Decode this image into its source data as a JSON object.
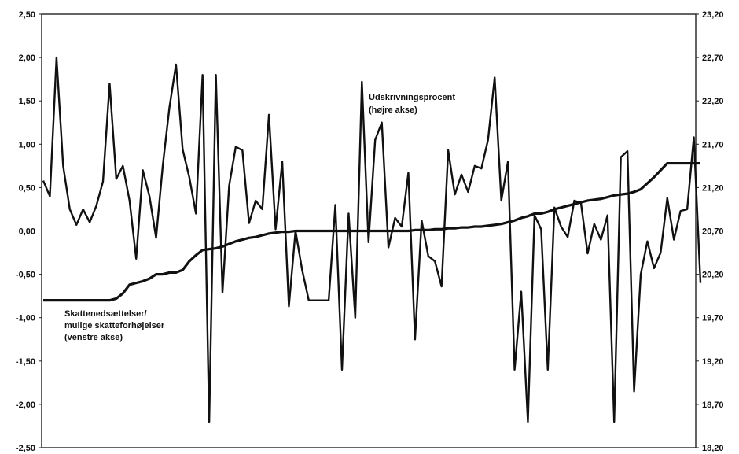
{
  "chart_data": {
    "type": "line",
    "title": "",
    "xlabel": "",
    "grid": false,
    "left_axis": {
      "ylim": [
        -2.5,
        2.5
      ],
      "ticks": [
        2.5,
        2.0,
        1.5,
        1.0,
        0.5,
        0.0,
        -0.5,
        -1.0,
        -1.5,
        -2.0,
        -2.5
      ],
      "tick_labels": [
        "2,50",
        "2,00",
        "1,50",
        "1,00",
        "0,50",
        "0,00",
        "-0,50",
        "-1,00",
        "-1,50",
        "-2,00",
        "-2,50"
      ]
    },
    "right_axis": {
      "ylim": [
        18.2,
        23.2
      ],
      "ticks": [
        23.2,
        22.7,
        22.2,
        21.7,
        21.2,
        20.7,
        20.2,
        19.7,
        19.2,
        18.7,
        18.2
      ],
      "tick_labels": [
        "23,20",
        "22,70",
        "22,20",
        "21,70",
        "21,20",
        "20,70",
        "20,20",
        "19,70",
        "19,20",
        "18,70",
        "18,20"
      ]
    },
    "annotations": [
      {
        "id": "right-series",
        "lines": [
          "Udskrivningsprocent",
          "(højre akse)"
        ]
      },
      {
        "id": "left-series",
        "lines": [
          "Skattenedsættelser/",
          "mulige skatteforhøjelser",
          "(venstre akse)"
        ]
      }
    ],
    "series": [
      {
        "axis": "right",
        "values": [
          21.28,
          21.1,
          22.7,
          21.45,
          20.95,
          20.77,
          20.95,
          20.8,
          20.99,
          21.27,
          22.4,
          21.3,
          21.45,
          21.05,
          20.38,
          21.4,
          21.1,
          20.62,
          21.45,
          22.12,
          22.62,
          21.64,
          21.32,
          20.9,
          22.5,
          18.5,
          22.5,
          19.99,
          21.22,
          21.67,
          21.63,
          20.79,
          21.05,
          20.95,
          22.04,
          20.72,
          21.5,
          19.83,
          20.7,
          20.25,
          19.9,
          19.9,
          19.9,
          19.9,
          21.0,
          19.1,
          20.9,
          19.7,
          22.42,
          20.57,
          21.75,
          21.95,
          20.51,
          20.85,
          20.75,
          21.37,
          19.45,
          20.82,
          20.41,
          20.35,
          20.06,
          21.63,
          21.12,
          21.35,
          21.15,
          21.45,
          21.42,
          21.75,
          22.47,
          21.05,
          21.5,
          19.1,
          20.0,
          18.5,
          20.88,
          20.72,
          19.1,
          20.97,
          20.75,
          20.63,
          21.05,
          21.02,
          20.44,
          20.78,
          20.6,
          20.88,
          18.5,
          21.55,
          21.62,
          18.85,
          20.2,
          20.58,
          20.27,
          20.45,
          21.08,
          20.6,
          20.93,
          20.95,
          21.78,
          20.1
        ]
      },
      {
        "axis": "left",
        "values": [
          -0.8,
          -0.8,
          -0.8,
          -0.8,
          -0.8,
          -0.8,
          -0.8,
          -0.8,
          -0.8,
          -0.8,
          -0.8,
          -0.78,
          -0.72,
          -0.62,
          -0.6,
          -0.58,
          -0.55,
          -0.5,
          -0.5,
          -0.48,
          -0.48,
          -0.45,
          -0.35,
          -0.28,
          -0.22,
          -0.21,
          -0.2,
          -0.18,
          -0.15,
          -0.12,
          -0.1,
          -0.08,
          -0.07,
          -0.05,
          -0.03,
          -0.02,
          -0.01,
          -0.01,
          0.0,
          0.0,
          0.0,
          0.0,
          0.0,
          0.0,
          0.0,
          0.0,
          0.0,
          0.0,
          0.0,
          0.0,
          0.0,
          0.0,
          0.0,
          0.0,
          0.0,
          0.0,
          0.01,
          0.01,
          0.01,
          0.02,
          0.02,
          0.03,
          0.03,
          0.04,
          0.04,
          0.05,
          0.05,
          0.06,
          0.07,
          0.08,
          0.1,
          0.12,
          0.15,
          0.17,
          0.2,
          0.2,
          0.22,
          0.25,
          0.27,
          0.29,
          0.31,
          0.33,
          0.35,
          0.36,
          0.37,
          0.39,
          0.41,
          0.42,
          0.43,
          0.45,
          0.48,
          0.55,
          0.62,
          0.7,
          0.78,
          0.78,
          0.78,
          0.78,
          0.78,
          0.78
        ]
      }
    ]
  }
}
